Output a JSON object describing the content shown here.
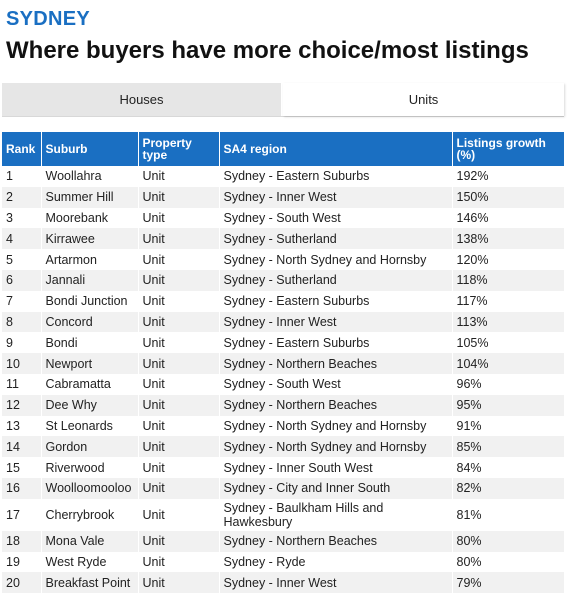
{
  "city": "SYDNEY",
  "headline": "Where buyers have more choice/most listings",
  "tabs": [
    {
      "label": "Houses",
      "active": false
    },
    {
      "label": "Units",
      "active": true
    }
  ],
  "table": {
    "headers": {
      "rank": "Rank",
      "suburb": "Suburb",
      "type": "Property type",
      "region": "SA4 region",
      "growth": "Listings growth (%)"
    },
    "rows": [
      [
        "1",
        "Woollahra",
        "Unit",
        "Sydney - Eastern Suburbs",
        "192%"
      ],
      [
        "2",
        "Summer Hill",
        "Unit",
        "Sydney - Inner West",
        "150%"
      ],
      [
        "3",
        "Moorebank",
        "Unit",
        "Sydney - South West",
        "146%"
      ],
      [
        "4",
        "Kirrawee",
        "Unit",
        "Sydney - Sutherland",
        "138%"
      ],
      [
        "5",
        "Artarmon",
        "Unit",
        "Sydney - North Sydney and Hornsby",
        "120%"
      ],
      [
        "6",
        "Jannali",
        "Unit",
        "Sydney - Sutherland",
        "118%"
      ],
      [
        "7",
        "Bondi Junction",
        "Unit",
        "Sydney - Eastern Suburbs",
        "117%"
      ],
      [
        "8",
        "Concord",
        "Unit",
        "Sydney - Inner West",
        "113%"
      ],
      [
        "9",
        "Bondi",
        "Unit",
        "Sydney - Eastern Suburbs",
        "105%"
      ],
      [
        "10",
        "Newport",
        "Unit",
        "Sydney - Northern Beaches",
        "104%"
      ],
      [
        "11",
        "Cabramatta",
        "Unit",
        "Sydney - South West",
        "96%"
      ],
      [
        "12",
        "Dee Why",
        "Unit",
        "Sydney - Northern Beaches",
        "95%"
      ],
      [
        "13",
        "St Leonards",
        "Unit",
        "Sydney - North Sydney and Hornsby",
        "91%"
      ],
      [
        "14",
        "Gordon",
        "Unit",
        "Sydney - North Sydney and Hornsby",
        "85%"
      ],
      [
        "15",
        "Riverwood",
        "Unit",
        "Sydney - Inner South West",
        "84%"
      ],
      [
        "16",
        "Woolloomooloo",
        "Unit",
        "Sydney - City and Inner South",
        "82%"
      ],
      [
        "17",
        "Cherrybrook",
        "Unit",
        "Sydney - Baulkham Hills and Hawkesbury",
        "81%"
      ],
      [
        "18",
        "Mona Vale",
        "Unit",
        "Sydney - Northern Beaches",
        "80%"
      ],
      [
        "19",
        "West Ryde",
        "Unit",
        "Sydney - Ryde",
        "80%"
      ],
      [
        "20",
        "Breakfast Point",
        "Unit",
        "Sydney - Inner West",
        "79%"
      ]
    ]
  },
  "colors": {
    "accent": "#1a6fc2",
    "row_alt": "#f1f1f1",
    "tab_inactive": "#e6e6e6"
  }
}
